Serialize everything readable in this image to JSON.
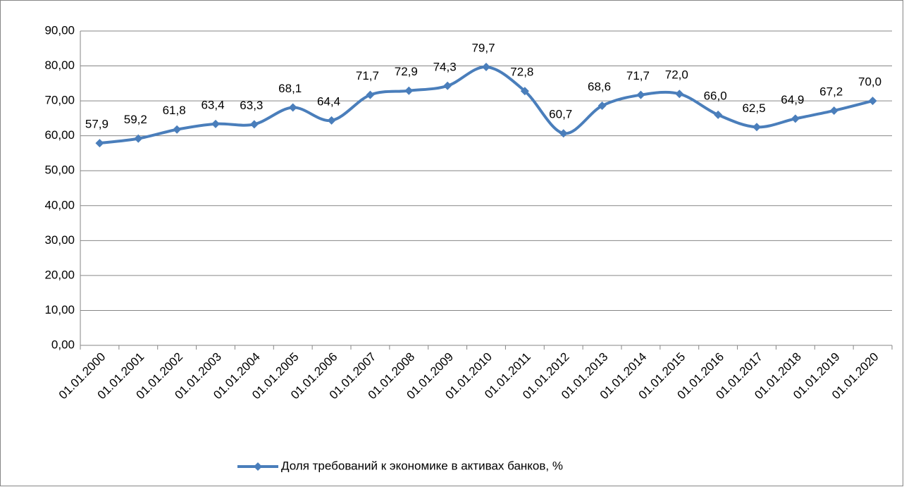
{
  "chart_data": {
    "type": "line",
    "categories": [
      "01.01.2000",
      "01.01.2001",
      "01.01.2002",
      "01.01.2003",
      "01.01.2004",
      "01.01.2005",
      "01.01.2006",
      "01.01.2007",
      "01.01.2008",
      "01.01.2009",
      "01.01.2010",
      "01.01.2011",
      "01.01.2012",
      "01.01.2013",
      "01.01.2014",
      "01.01.2015",
      "01.01.2016",
      "01.01.2017",
      "01.01.2018",
      "01.01.2019",
      "01.01.2020"
    ],
    "series": [
      {
        "name": "Доля требований к экономике в активах банков, %",
        "color": "#4a7ebb",
        "values": [
          57.9,
          59.2,
          61.8,
          63.4,
          63.3,
          68.1,
          64.4,
          71.7,
          72.9,
          74.3,
          79.7,
          72.8,
          60.7,
          68.6,
          71.7,
          72.0,
          66.0,
          62.5,
          64.9,
          67.2,
          70.0
        ],
        "value_labels": [
          "57,9",
          "59,2",
          "61,8",
          "63,4",
          "63,3",
          "68,1",
          "64,4",
          "71,7",
          "72,9",
          "74,3",
          "79,7",
          "72,8",
          "60,7",
          "68,6",
          "71,7",
          "72,0",
          "66,0",
          "62,5",
          "64,9",
          "67,2",
          "70,0"
        ]
      }
    ],
    "ylim": [
      0,
      90
    ],
    "yticks": [
      {
        "value": 0,
        "label": "0,00"
      },
      {
        "value": 10,
        "label": "10,00"
      },
      {
        "value": 20,
        "label": "20,00"
      },
      {
        "value": 30,
        "label": "30,00"
      },
      {
        "value": 40,
        "label": "40,00"
      },
      {
        "value": 50,
        "label": "50,00"
      },
      {
        "value": 60,
        "label": "60,00"
      },
      {
        "value": 70,
        "label": "70,00"
      },
      {
        "value": 80,
        "label": "80,00"
      },
      {
        "value": 90,
        "label": "90,00"
      }
    ],
    "grid": true,
    "legend": "bottom"
  }
}
